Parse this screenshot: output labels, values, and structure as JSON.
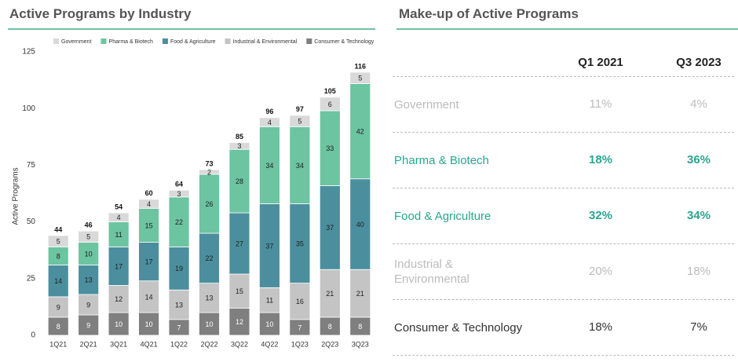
{
  "chart_data": {
    "type": "stacked_bar",
    "title": "Active Programs by Industry",
    "y_label": "Active Programs",
    "categories": [
      "1Q21",
      "2Q21",
      "3Q21",
      "4Q21",
      "1Q22",
      "2Q22",
      "3Q22",
      "4Q22",
      "1Q23",
      "2Q23",
      "3Q23"
    ],
    "series": [
      {
        "name": "Government",
        "color": "#d9d9d9",
        "values": [
          5,
          5,
          4,
          4,
          3,
          2,
          3,
          4,
          5,
          6,
          5
        ]
      },
      {
        "name": "Pharma & Biotech",
        "color": "#6cc4a1",
        "values": [
          8,
          10,
          11,
          15,
          22,
          26,
          28,
          34,
          34,
          33,
          42
        ]
      },
      {
        "name": "Food & Agriculture",
        "color": "#4b8f9e",
        "values": [
          14,
          13,
          17,
          17,
          19,
          22,
          27,
          37,
          35,
          37,
          40
        ]
      },
      {
        "name": "Industrial & Environmental",
        "color": "#c4c4c4",
        "values": [
          9,
          9,
          12,
          14,
          13,
          13,
          15,
          11,
          16,
          21,
          21
        ]
      },
      {
        "name": "Consumer & Technology",
        "color": "#7f7f7f",
        "values": [
          8,
          9,
          10,
          10,
          7,
          10,
          12,
          10,
          7,
          8,
          8
        ]
      }
    ],
    "totals": [
      44,
      46,
      54,
      60,
      64,
      73,
      85,
      96,
      97,
      105,
      116
    ],
    "ylim": [
      0,
      125
    ],
    "yticks": [
      0,
      25,
      50,
      75,
      100,
      125
    ],
    "grid": false,
    "legend": "top"
  },
  "table": {
    "title": "Make-up of Active Programs",
    "columns": [
      "Q1 2021",
      "Q3 2023"
    ],
    "rows": [
      [
        "Government",
        "11%",
        "4%"
      ],
      [
        "Pharma & Biotech",
        "18%",
        "36%"
      ],
      [
        "Food & Agriculture",
        "32%",
        "34%"
      ],
      [
        "Industrial & Environmental",
        "20%",
        "18%"
      ],
      [
        "Consumer & Technology",
        "18%",
        "7%"
      ]
    ]
  }
}
